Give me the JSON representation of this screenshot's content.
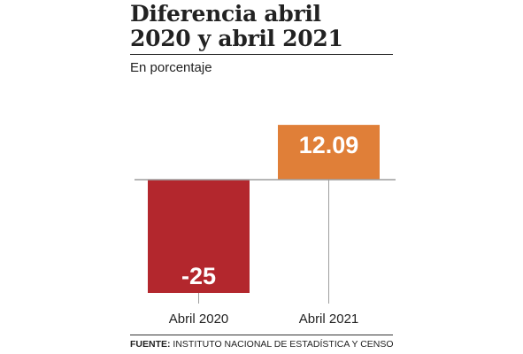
{
  "title_line1": "Diferencia abril",
  "title_line2": "2020 y abril 2021",
  "subtitle": "En porcentaje",
  "source_label": "FUENTE:",
  "source_text": "INSTITUTO NACIONAL DE ESTADÍSTICA Y CENSO",
  "colors": {
    "negative": "#b3272d",
    "positive": "#e07f38",
    "axis": "#9e9e9e"
  },
  "chart_data": {
    "type": "bar",
    "categories": [
      "Abril 2020",
      "Abril 2021"
    ],
    "values": [
      -25,
      12.09
    ],
    "value_labels": [
      "-25",
      "12.09"
    ],
    "title": "Diferencia abril 2020 y abril 2021",
    "xlabel": "",
    "ylabel": "En porcentaje",
    "ylim": [
      -25,
      12.09
    ],
    "grid": false
  }
}
